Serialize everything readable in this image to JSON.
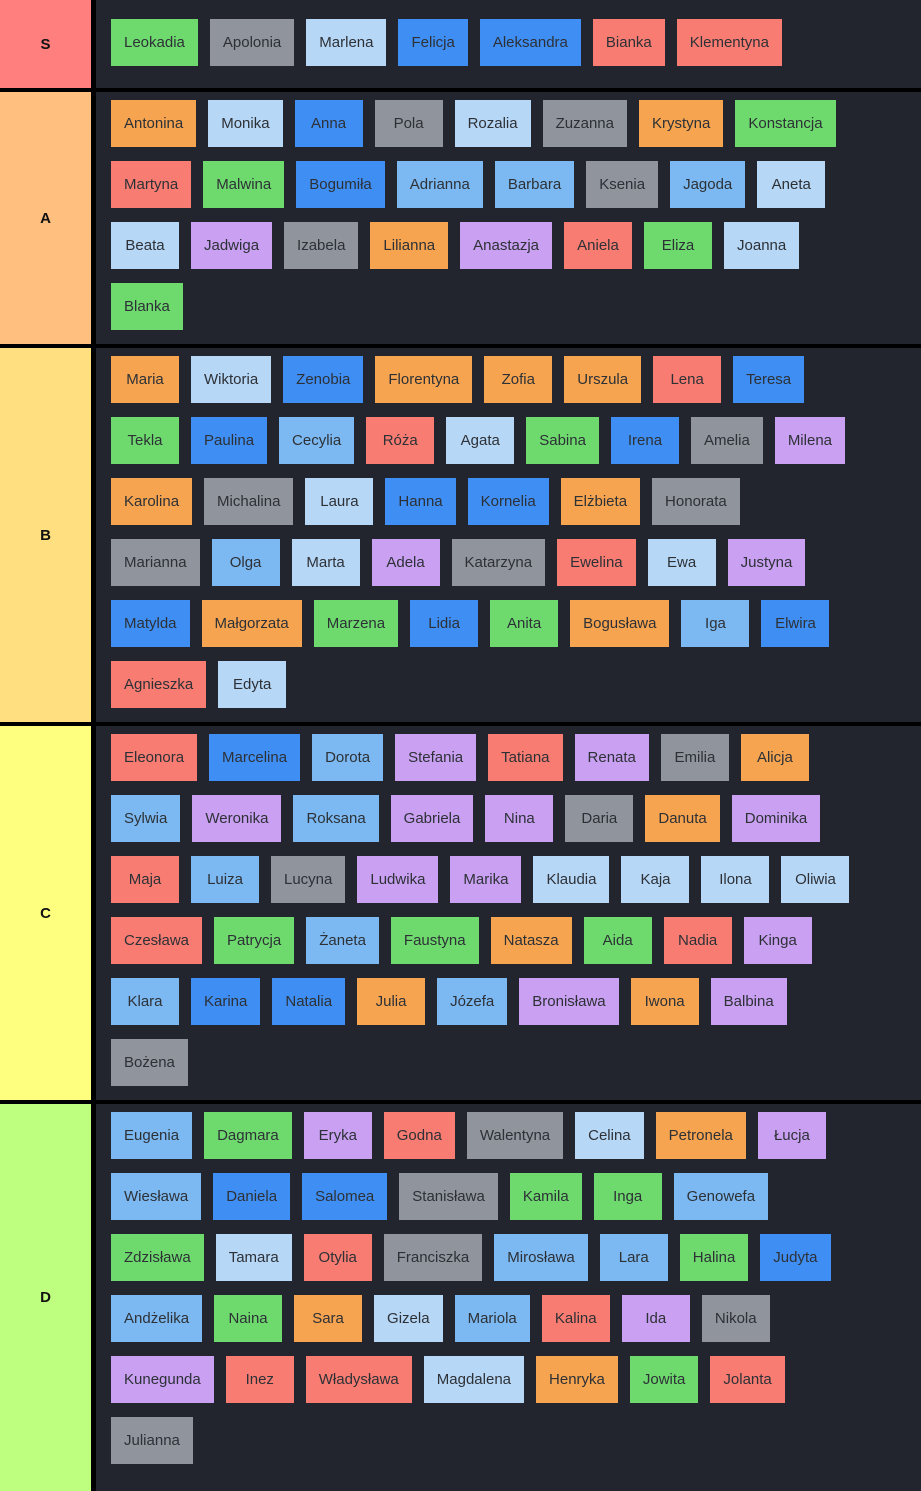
{
  "app": "tier-list",
  "palette": {
    "board_bg": "#22252e",
    "frame_bg": "#000000",
    "tile_text": "#2d3136",
    "tile_colors": {
      "green": "#6eda6e",
      "gray": "#8f949d",
      "lightblue": "#b7d7f7",
      "midblue": "#7cb9f2",
      "blue": "#3f8ef3",
      "orange": "#f7a450",
      "red": "#f87c72",
      "purple": "#c9a0f2"
    }
  },
  "tiers": [
    {
      "label": "S",
      "label_color": "#ff7f7f",
      "rows": [
        [
          {
            "label": "Leokadia",
            "color": "green"
          },
          {
            "label": "Apolonia",
            "color": "gray"
          },
          {
            "label": "Marlena",
            "color": "lightblue"
          },
          {
            "label": "Felicja",
            "color": "blue"
          },
          {
            "label": "Aleksandra",
            "color": "blue"
          },
          {
            "label": "Bianka",
            "color": "red"
          },
          {
            "label": "Klementyna",
            "color": "red"
          }
        ]
      ]
    },
    {
      "label": "A",
      "label_color": "#ffbf7f",
      "rows": [
        [
          {
            "label": "Antonina",
            "color": "orange"
          },
          {
            "label": "Monika",
            "color": "lightblue"
          },
          {
            "label": "Anna",
            "color": "blue"
          },
          {
            "label": "Pola",
            "color": "gray"
          },
          {
            "label": "Rozalia",
            "color": "lightblue"
          },
          {
            "label": "Zuzanna",
            "color": "gray"
          },
          {
            "label": "Krystyna",
            "color": "orange"
          },
          {
            "label": "Konstancja",
            "color": "green"
          }
        ],
        [
          {
            "label": "Martyna",
            "color": "red"
          },
          {
            "label": "Malwina",
            "color": "green"
          },
          {
            "label": "Bogumiła",
            "color": "blue"
          },
          {
            "label": "Adrianna",
            "color": "midblue"
          },
          {
            "label": "Barbara",
            "color": "midblue"
          },
          {
            "label": "Ksenia",
            "color": "gray"
          },
          {
            "label": "Jagoda",
            "color": "midblue"
          },
          {
            "label": "Aneta",
            "color": "lightblue"
          }
        ],
        [
          {
            "label": "Beata",
            "color": "lightblue"
          },
          {
            "label": "Jadwiga",
            "color": "purple"
          },
          {
            "label": "Izabela",
            "color": "gray"
          },
          {
            "label": "Lilianna",
            "color": "orange"
          },
          {
            "label": "Anastazja",
            "color": "purple"
          },
          {
            "label": "Aniela",
            "color": "red"
          },
          {
            "label": "Eliza",
            "color": "green"
          },
          {
            "label": "Joanna",
            "color": "lightblue"
          }
        ],
        [
          {
            "label": "Blanka",
            "color": "green"
          }
        ]
      ]
    },
    {
      "label": "B",
      "label_color": "#ffdf7f",
      "rows": [
        [
          {
            "label": "Maria",
            "color": "orange"
          },
          {
            "label": "Wiktoria",
            "color": "lightblue"
          },
          {
            "label": "Zenobia",
            "color": "blue"
          },
          {
            "label": "Florentyna",
            "color": "orange"
          },
          {
            "label": "Zofia",
            "color": "orange"
          },
          {
            "label": "Urszula",
            "color": "orange"
          },
          {
            "label": "Lena",
            "color": "red"
          },
          {
            "label": "Teresa",
            "color": "blue"
          }
        ],
        [
          {
            "label": "Tekla",
            "color": "green"
          },
          {
            "label": "Paulina",
            "color": "blue"
          },
          {
            "label": "Cecylia",
            "color": "midblue"
          },
          {
            "label": "Róża",
            "color": "red"
          },
          {
            "label": "Agata",
            "color": "lightblue"
          },
          {
            "label": "Sabina",
            "color": "green"
          },
          {
            "label": "Irena",
            "color": "blue"
          },
          {
            "label": "Amelia",
            "color": "gray"
          },
          {
            "label": "Milena",
            "color": "purple"
          }
        ],
        [
          {
            "label": "Karolina",
            "color": "orange"
          },
          {
            "label": "Michalina",
            "color": "gray"
          },
          {
            "label": "Laura",
            "color": "lightblue"
          },
          {
            "label": "Hanna",
            "color": "blue"
          },
          {
            "label": "Kornelia",
            "color": "blue"
          },
          {
            "label": "Elżbieta",
            "color": "orange"
          },
          {
            "label": "Honorata",
            "color": "gray"
          }
        ],
        [
          {
            "label": "Marianna",
            "color": "gray"
          },
          {
            "label": "Olga",
            "color": "midblue"
          },
          {
            "label": "Marta",
            "color": "lightblue"
          },
          {
            "label": "Adela",
            "color": "purple"
          },
          {
            "label": "Katarzyna",
            "color": "gray"
          },
          {
            "label": "Ewelina",
            "color": "red"
          },
          {
            "label": "Ewa",
            "color": "lightblue"
          },
          {
            "label": "Justyna",
            "color": "purple"
          }
        ],
        [
          {
            "label": "Matylda",
            "color": "blue"
          },
          {
            "label": "Małgorzata",
            "color": "orange"
          },
          {
            "label": "Marzena",
            "color": "green"
          },
          {
            "label": "Lidia",
            "color": "blue"
          },
          {
            "label": "Anita",
            "color": "green"
          },
          {
            "label": "Bogusława",
            "color": "orange"
          },
          {
            "label": "Iga",
            "color": "midblue"
          },
          {
            "label": "Elwira",
            "color": "blue"
          }
        ],
        [
          {
            "label": "Agnieszka",
            "color": "red"
          },
          {
            "label": "Edyta",
            "color": "lightblue"
          }
        ]
      ]
    },
    {
      "label": "C",
      "label_color": "#ffff7f",
      "rows": [
        [
          {
            "label": "Eleonora",
            "color": "red"
          },
          {
            "label": "Marcelina",
            "color": "blue"
          },
          {
            "label": "Dorota",
            "color": "midblue"
          },
          {
            "label": "Stefania",
            "color": "purple"
          },
          {
            "label": "Tatiana",
            "color": "red"
          },
          {
            "label": "Renata",
            "color": "purple"
          },
          {
            "label": "Emilia",
            "color": "gray"
          },
          {
            "label": "Alicja",
            "color": "orange"
          }
        ],
        [
          {
            "label": "Sylwia",
            "color": "midblue"
          },
          {
            "label": "Weronika",
            "color": "purple"
          },
          {
            "label": "Roksana",
            "color": "midblue"
          },
          {
            "label": "Gabriela",
            "color": "purple"
          },
          {
            "label": "Nina",
            "color": "purple"
          },
          {
            "label": "Daria",
            "color": "gray"
          },
          {
            "label": "Danuta",
            "color": "orange"
          },
          {
            "label": "Dominika",
            "color": "purple"
          }
        ],
        [
          {
            "label": "Maja",
            "color": "red"
          },
          {
            "label": "Luiza",
            "color": "midblue"
          },
          {
            "label": "Lucyna",
            "color": "gray"
          },
          {
            "label": "Ludwika",
            "color": "purple"
          },
          {
            "label": "Marika",
            "color": "purple"
          },
          {
            "label": "Klaudia",
            "color": "lightblue"
          },
          {
            "label": "Kaja",
            "color": "lightblue"
          },
          {
            "label": "Ilona",
            "color": "lightblue"
          },
          {
            "label": "Oliwia",
            "color": "lightblue"
          }
        ],
        [
          {
            "label": "Czesława",
            "color": "red"
          },
          {
            "label": "Patrycja",
            "color": "green"
          },
          {
            "label": "Żaneta",
            "color": "midblue"
          },
          {
            "label": "Faustyna",
            "color": "green"
          },
          {
            "label": "Natasza",
            "color": "orange"
          },
          {
            "label": "Aida",
            "color": "green"
          },
          {
            "label": "Nadia",
            "color": "red"
          },
          {
            "label": "Kinga",
            "color": "purple"
          }
        ],
        [
          {
            "label": "Klara",
            "color": "midblue"
          },
          {
            "label": "Karina",
            "color": "blue"
          },
          {
            "label": "Natalia",
            "color": "blue"
          },
          {
            "label": "Julia",
            "color": "orange"
          },
          {
            "label": "Józefa",
            "color": "midblue"
          },
          {
            "label": "Bronisława",
            "color": "purple"
          },
          {
            "label": "Iwona",
            "color": "orange"
          },
          {
            "label": "Balbina",
            "color": "purple"
          }
        ],
        [
          {
            "label": "Bożena",
            "color": "gray"
          }
        ]
      ]
    },
    {
      "label": "D",
      "label_color": "#bfff7f",
      "rows": [
        [
          {
            "label": "Eugenia",
            "color": "midblue"
          },
          {
            "label": "Dagmara",
            "color": "green"
          },
          {
            "label": "Eryka",
            "color": "purple"
          },
          {
            "label": "Godna",
            "color": "red"
          },
          {
            "label": "Walentyna",
            "color": "gray"
          },
          {
            "label": "Celina",
            "color": "lightblue"
          },
          {
            "label": "Petronela",
            "color": "orange"
          },
          {
            "label": "Łucja",
            "color": "purple"
          }
        ],
        [
          {
            "label": "Wiesława",
            "color": "midblue"
          },
          {
            "label": "Daniela",
            "color": "blue"
          },
          {
            "label": "Salomea",
            "color": "blue"
          },
          {
            "label": "Stanisława",
            "color": "gray"
          },
          {
            "label": "Kamila",
            "color": "green"
          },
          {
            "label": "Inga",
            "color": "green"
          },
          {
            "label": "Genowefa",
            "color": "midblue"
          }
        ],
        [
          {
            "label": "Zdzisława",
            "color": "green"
          },
          {
            "label": "Tamara",
            "color": "lightblue"
          },
          {
            "label": "Otylia",
            "color": "red"
          },
          {
            "label": "Franciszka",
            "color": "gray"
          },
          {
            "label": "Mirosława",
            "color": "midblue"
          },
          {
            "label": "Lara",
            "color": "midblue"
          },
          {
            "label": "Halina",
            "color": "green"
          },
          {
            "label": "Judyta",
            "color": "blue"
          }
        ],
        [
          {
            "label": "Andżelika",
            "color": "midblue"
          },
          {
            "label": "Naina",
            "color": "green"
          },
          {
            "label": "Sara",
            "color": "orange"
          },
          {
            "label": "Gizela",
            "color": "lightblue"
          },
          {
            "label": "Mariola",
            "color": "midblue"
          },
          {
            "label": "Kalina",
            "color": "red"
          },
          {
            "label": "Ida",
            "color": "purple"
          },
          {
            "label": "Nikola",
            "color": "gray"
          }
        ],
        [
          {
            "label": "Kunegunda",
            "color": "purple"
          },
          {
            "label": "Inez",
            "color": "red"
          },
          {
            "label": "Władysława",
            "color": "red"
          },
          {
            "label": "Magdalena",
            "color": "lightblue"
          },
          {
            "label": "Henryka",
            "color": "orange"
          },
          {
            "label": "Jowita",
            "color": "green"
          },
          {
            "label": "Jolanta",
            "color": "red"
          }
        ],
        [
          {
            "label": "Julianna",
            "color": "gray"
          }
        ]
      ]
    }
  ]
}
